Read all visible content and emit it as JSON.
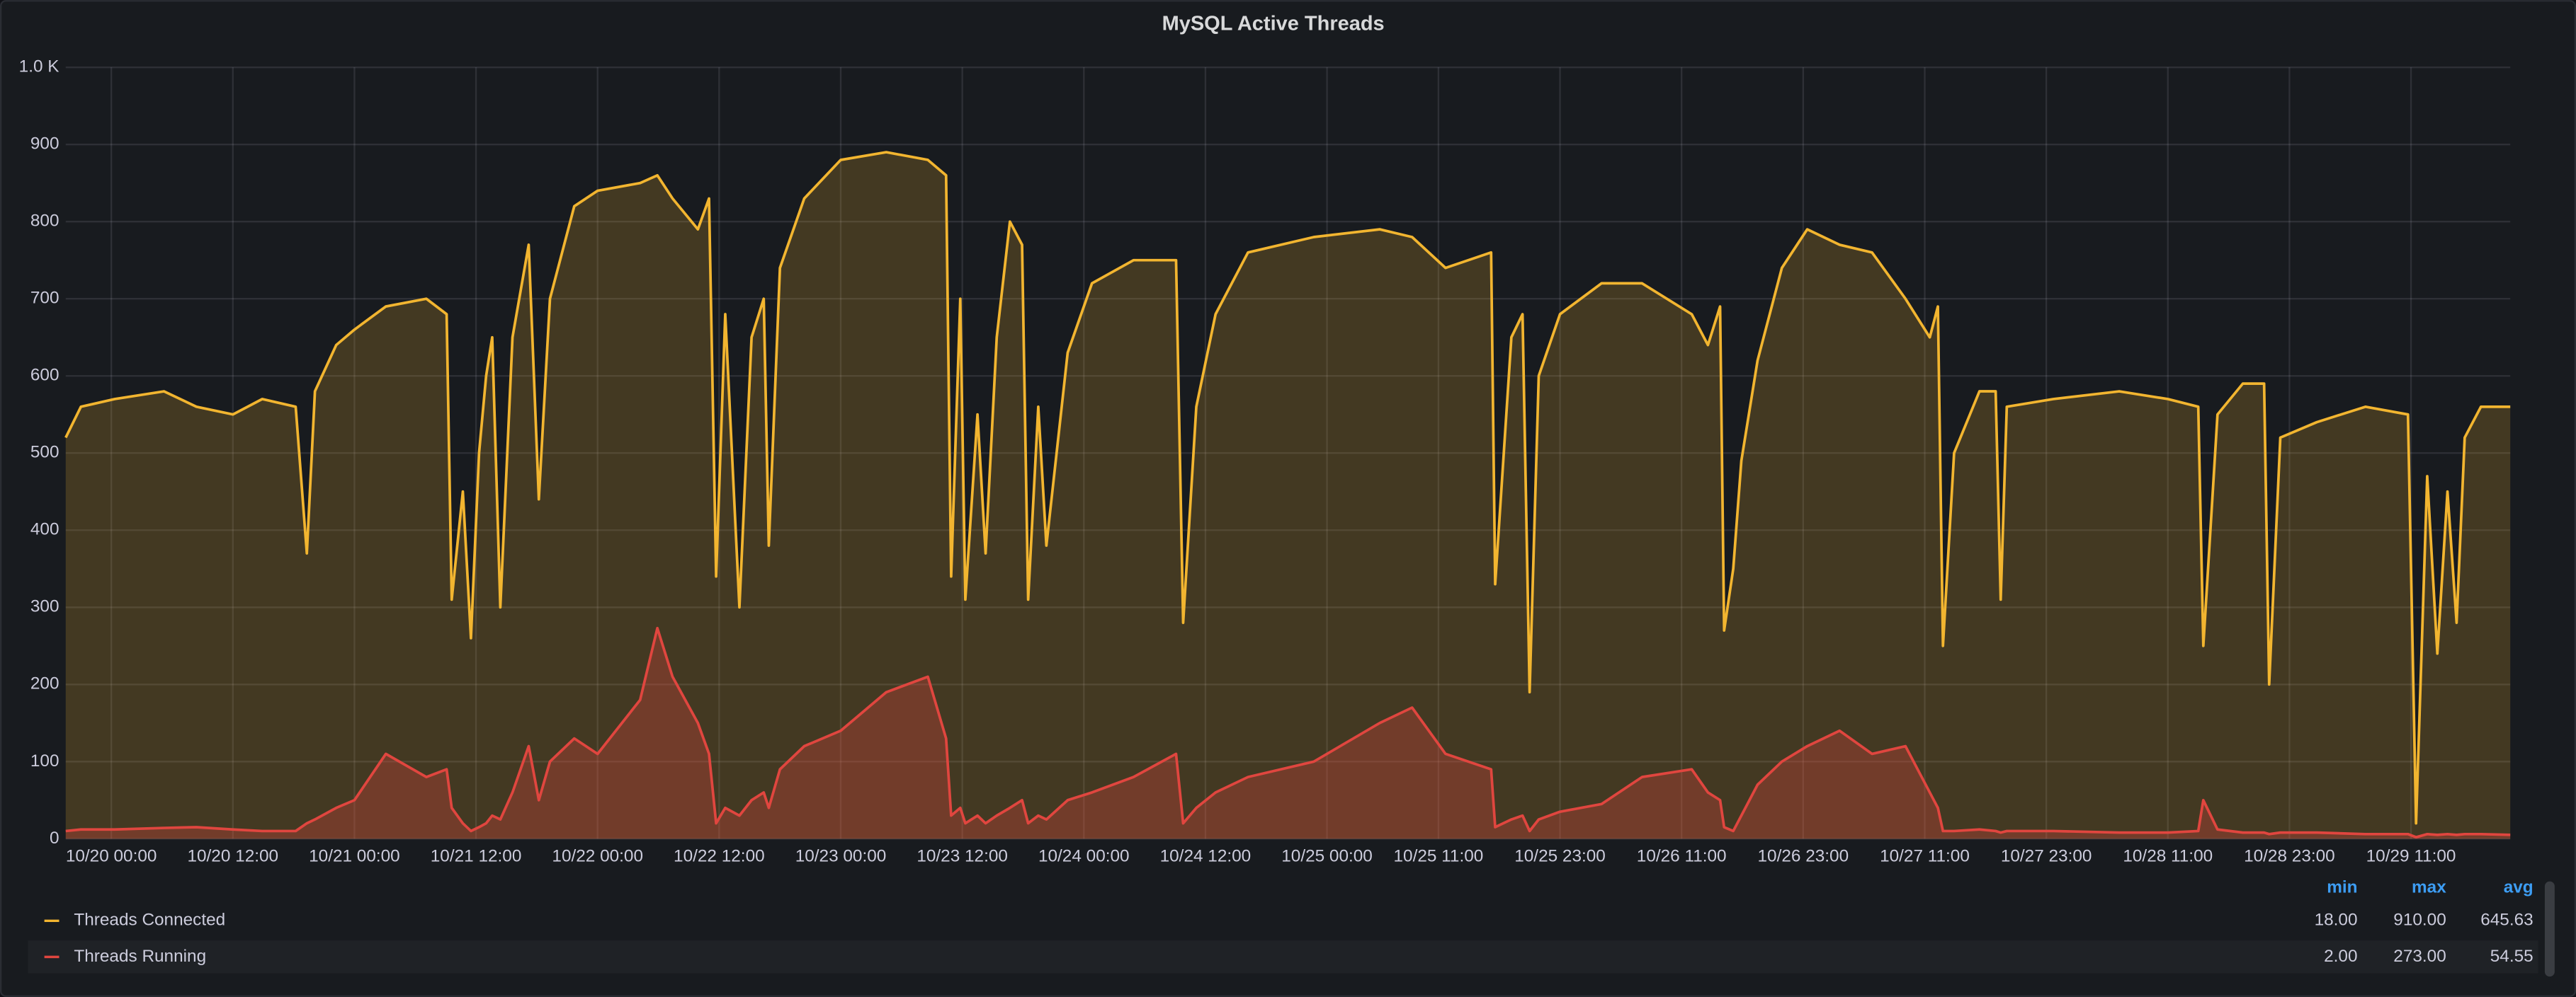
{
  "chart_data": {
    "type": "line",
    "title": "MySQL Active Threads",
    "x": [
      "10/19 19:30",
      "10/19 21:00",
      "10/20 00:20",
      "10/20 05:12",
      "10/20 08:24",
      "10/20 12:00",
      "10/20 14:54",
      "10/20 18:12",
      "10/20 19:18",
      "10/20 20:06",
      "10/20 22:12",
      "10/21 00:00",
      "10/21 03:06",
      "10/21 07:06",
      "10/21 09:06",
      "10/21 09:36",
      "10/21 10:42",
      "10/21 11:30",
      "10/21 12:18",
      "10/21 13:00",
      "10/21 13:36",
      "10/21 14:24",
      "10/21 15:36",
      "10/21 17:12",
      "10/21 18:12",
      "10/21 19:18",
      "10/21 21:42",
      "10/22 00:00",
      "10/22 04:12",
      "10/22 05:54",
      "10/22 07:24",
      "10/22 09:54",
      "10/22 11:00",
      "10/22 11:42",
      "10/22 12:36",
      "10/22 14:00",
      "10/22 15:12",
      "10/22 16:24",
      "10/22 16:54",
      "10/22 18:00",
      "10/22 20:24",
      "10/23 00:00",
      "10/23 04:30",
      "10/23 08:36",
      "10/23 10:24",
      "10/23 10:54",
      "10/23 11:48",
      "10/23 12:18",
      "10/23 13:30",
      "10/23 14:18",
      "10/23 15:24",
      "10/23 16:42",
      "10/23 17:54",
      "10/23 18:30",
      "10/23 19:30",
      "10/23 20:18",
      "10/23 22:24",
      "10/24 00:48",
      "10/24 04:54",
      "10/24 09:06",
      "10/24 09:48",
      "10/24 11:06",
      "10/24 13:00",
      "10/24 16:12",
      "10/24 22:42",
      "10/25 05:12",
      "10/25 08:24",
      "10/25 11:42",
      "10/25 16:12",
      "10/25 16:36",
      "10/25 18:12",
      "10/25 19:18",
      "10/25 20:00",
      "10/25 20:54",
      "10/25 23:00",
      "10/26 03:06",
      "10/26 07:06",
      "10/26 12:00",
      "10/26 13:36",
      "10/26 14:48",
      "10/26 15:12",
      "10/26 16:06",
      "10/26 16:54",
      "10/26 18:30",
      "10/26 20:54",
      "10/26 23:24",
      "10/27 02:36",
      "10/27 05:48",
      "10/27 09:06",
      "10/27 11:30",
      "10/27 12:18",
      "10/27 12:48",
      "10/27 13:54",
      "10/27 16:24",
      "10/27 18:00",
      "10/27 18:30",
      "10/27 19:06",
      "10/27 23:42",
      "10/28 06:12",
      "10/28 11:00",
      "10/28 14:00",
      "10/28 14:30",
      "10/28 15:54",
      "10/28 18:24",
      "10/28 20:30",
      "10/28 21:00",
      "10/28 22:06",
      "10/29 01:42",
      "10/29 06:30",
      "10/29 10:42",
      "10/29 11:30",
      "10/29 12:36",
      "10/29 13:36",
      "10/29 14:36",
      "10/29 15:30",
      "10/29 16:18",
      "10/29 17:54",
      "10/29 20:48"
    ],
    "series": [
      {
        "name": "Threads Connected",
        "color": "#F2B530",
        "values": [
          520,
          560,
          570,
          580,
          560,
          550,
          570,
          560,
          370,
          580,
          640,
          660,
          690,
          700,
          680,
          310,
          450,
          260,
          500,
          600,
          650,
          300,
          650,
          770,
          440,
          700,
          820,
          840,
          850,
          860,
          830,
          790,
          830,
          340,
          680,
          300,
          650,
          700,
          380,
          740,
          830,
          880,
          890,
          880,
          860,
          340,
          700,
          310,
          550,
          370,
          650,
          800,
          770,
          310,
          560,
          380,
          630,
          720,
          750,
          750,
          280,
          560,
          680,
          760,
          780,
          790,
          780,
          740,
          760,
          330,
          650,
          680,
          190,
          600,
          680,
          720,
          720,
          680,
          640,
          690,
          270,
          350,
          490,
          620,
          740,
          790,
          770,
          760,
          700,
          650,
          690,
          250,
          500,
          580,
          580,
          310,
          560,
          570,
          580,
          570,
          560,
          250,
          550,
          590,
          590,
          200,
          520,
          540,
          560,
          550,
          20,
          470,
          240,
          450,
          280,
          520,
          560,
          560
        ],
        "legend_values": [
          "18.00",
          "910.00",
          "645.63"
        ]
      },
      {
        "name": "Threads Running",
        "color": "#E0463F",
        "values": [
          10,
          12,
          12,
          14,
          15,
          12,
          10,
          10,
          20,
          25,
          40,
          50,
          110,
          80,
          90,
          40,
          20,
          10,
          15,
          20,
          30,
          25,
          60,
          120,
          50,
          100,
          130,
          110,
          180,
          273,
          210,
          150,
          110,
          20,
          40,
          30,
          50,
          60,
          40,
          90,
          120,
          140,
          190,
          210,
          130,
          30,
          40,
          20,
          30,
          20,
          30,
          40,
          50,
          20,
          30,
          25,
          50,
          60,
          80,
          110,
          20,
          40,
          60,
          80,
          100,
          150,
          170,
          110,
          90,
          15,
          25,
          30,
          10,
          25,
          35,
          45,
          80,
          90,
          60,
          50,
          15,
          10,
          30,
          70,
          100,
          120,
          140,
          110,
          120,
          60,
          40,
          10,
          10,
          12,
          10,
          8,
          10,
          10,
          8,
          8,
          10,
          50,
          12,
          8,
          8,
          6,
          8,
          8,
          6,
          6,
          2,
          6,
          5,
          6,
          5,
          6,
          6,
          5
        ],
        "legend_values": [
          "2.00",
          "273.00",
          "54.55"
        ]
      }
    ],
    "legend_columns": [
      "min",
      "max",
      "avg"
    ],
    "xlim": [
      "10/19 19:30",
      "10/29 20:48"
    ],
    "xticks": [
      "10/20 00:00",
      "10/20 12:00",
      "10/21 00:00",
      "10/21 12:00",
      "10/22 00:00",
      "10/22 12:00",
      "10/23 00:00",
      "10/23 12:00",
      "10/24 00:00",
      "10/24 12:00",
      "10/25 00:00",
      "10/25 11:00",
      "10/25 23:00",
      "10/26 11:00",
      "10/26 23:00",
      "10/27 11:00",
      "10/27 23:00",
      "10/28 11:00",
      "10/28 23:00",
      "10/29 11:00"
    ],
    "ylim": [
      0,
      1000
    ],
    "yticks": [
      0,
      100,
      200,
      300,
      400,
      500,
      600,
      700,
      800,
      900,
      {
        "value": 1000,
        "label": "1.0 K"
      }
    ],
    "grid": true
  }
}
